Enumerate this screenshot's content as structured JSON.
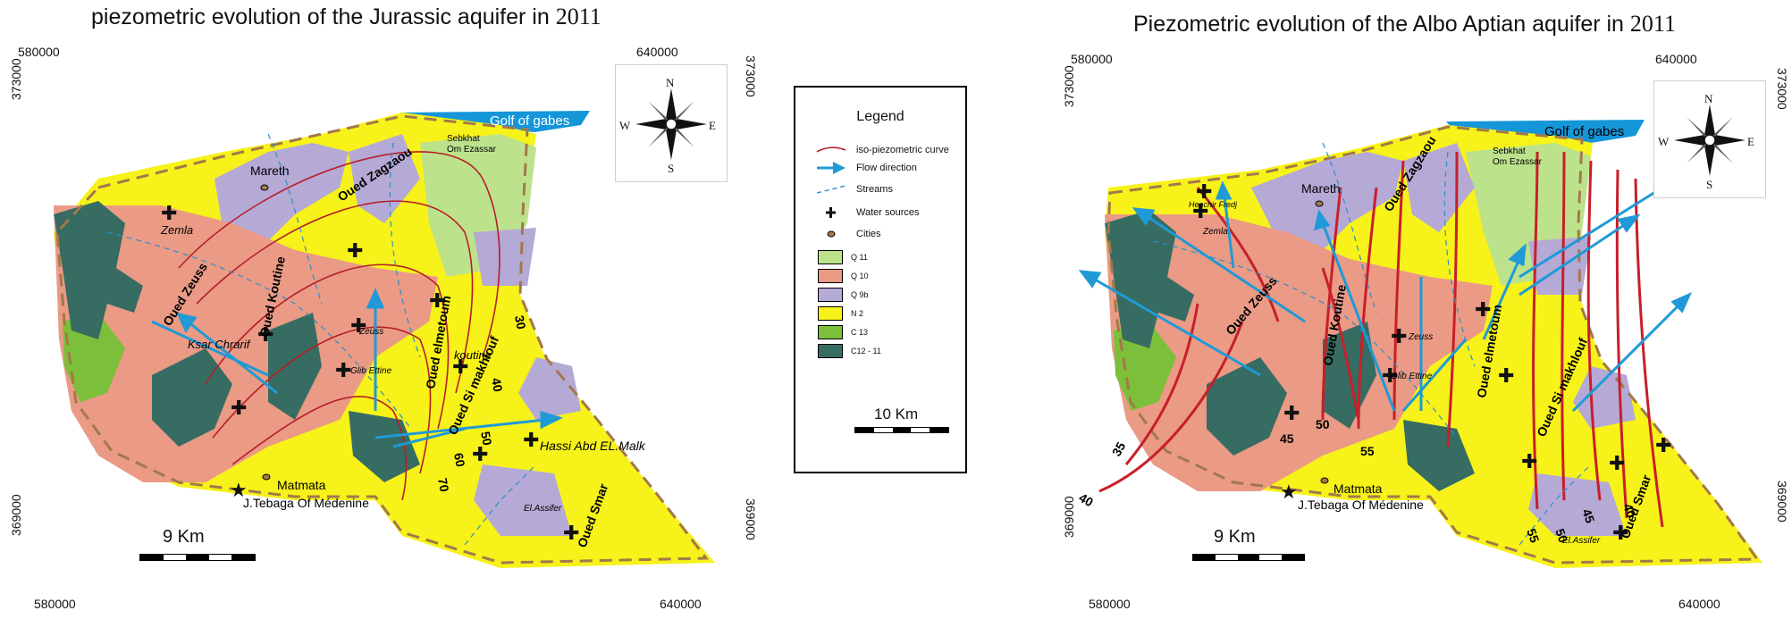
{
  "map_left": {
    "title_text": "piezometric evolution of the Jurassic aquifer  in",
    "title_year": "2011",
    "coords": {
      "top_left": "580000",
      "top_right": "640000",
      "bottom_left": "580000",
      "bottom_right": "640000",
      "left_top": "373000",
      "right_top": "373000",
      "right_bottom": "369000",
      "left_bottom": "369000"
    },
    "labels": {
      "golf": "Golf of gabes",
      "sebkhat": "Sebkhat",
      "om_ezassar": "Om Ezassar",
      "mareth": "Mareth",
      "zemla": "Zemla",
      "oued_zagzaou": "Oued Zagzaou",
      "oued_zeuss": "Oued Zeuss",
      "oued_koutine": "Oued Koutine",
      "oued_elmetoum": "Oued elmetoum",
      "oued_si_makhlouf": "Oued Si makhlouf",
      "ksar_chrarif": "Ksar Chrarif",
      "zeuss": "Zeuss",
      "koutine": "koutine",
      "glib_ettine": "Glib Ettine",
      "hassi": "Hassi Abd EL.Malk",
      "matmata": "Matmata",
      "tebaga": "J.Tebaga Of Médenine",
      "el_assifer": "El.Assifer",
      "oued_smar": "Oued Smar"
    },
    "contours": [
      "30",
      "40",
      "50",
      "60",
      "70"
    ],
    "scale": "9 Km"
  },
  "map_right": {
    "title_text": "Piezometric evolution of the Albo Aptian aquifer  in",
    "title_year": "2011",
    "coords": {
      "top_left": "580000",
      "top_right": "640000",
      "bottom_left": "580000",
      "bottom_right": "640000",
      "left_top": "373000",
      "right_top": "373000",
      "right_bottom": "369000",
      "left_bottom": "369000"
    },
    "labels": {
      "golf": "Golf of gabes",
      "sebkhat": "Sebkhat",
      "om_ezassar": "Om Ezassar",
      "henchir": "Henchir Fredj",
      "mareth": "Mareth",
      "zemla": "Zemla",
      "oued_zagzaou": "Oued Zagzaou",
      "oued_zeuss": "Oued Zeuss",
      "oued_koutine": "Oued Koutine",
      "oued_elmetoum": "Oued elmetoum",
      "oued_si_makhlouf": "Oued Si makhlouf",
      "zeuss": "Zeuss",
      "glib_ettine": "Glib Ettine",
      "matmata": "Matmata",
      "tebaga": "J.Tebaga Of Médenine",
      "el_assifer": "El.Assifer",
      "oued_smar": "Oued Smar"
    },
    "contours": [
      "35",
      "40",
      "45",
      "50",
      "55",
      "55",
      "50",
      "45",
      "40"
    ],
    "scale": "9 Km"
  },
  "compass": {
    "n": "N",
    "s": "S",
    "e": "E",
    "w": "W"
  },
  "legend": {
    "title": "Legend",
    "items": [
      {
        "label": "iso-piezometric curve",
        "symbol": "red-line"
      },
      {
        "label": "Flow direction",
        "symbol": "blue-arrow"
      },
      {
        "label": "Streams",
        "symbol": "dashed-blue"
      },
      {
        "label": "Water sources",
        "symbol": "cross"
      },
      {
        "label": "Cities",
        "symbol": "city-dot"
      },
      {
        "label": "Q 11",
        "color": "#bde28c"
      },
      {
        "label": "Q 10",
        "color": "#ea9a85"
      },
      {
        "label": "Q 9b",
        "color": "#b5a9d6"
      },
      {
        "label": "N 2",
        "color": "#f7f219"
      },
      {
        "label": "C 13",
        "color": "#7cbf3a"
      },
      {
        "label": "C12 - 11",
        "color": "#366c62"
      }
    ],
    "scale": "10 Km"
  }
}
